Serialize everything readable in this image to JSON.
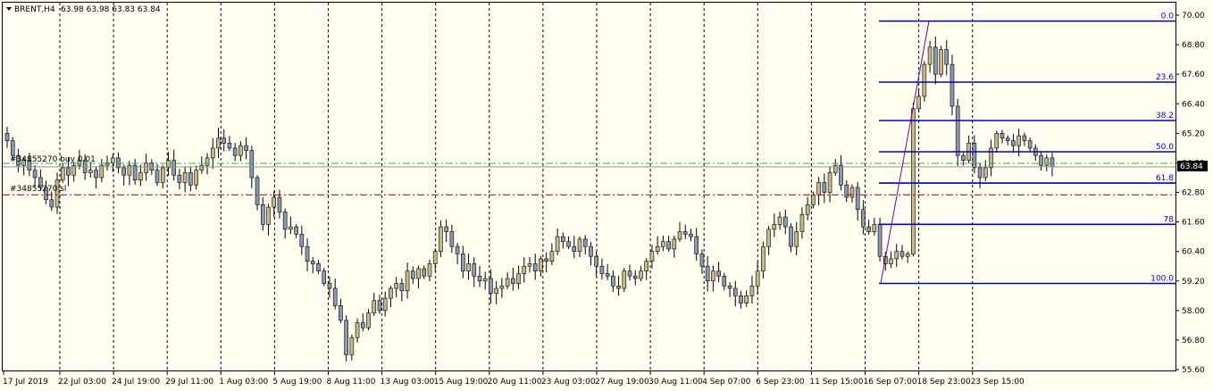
{
  "header": {
    "symbol": "BRENT,H4",
    "ohlc": "63.98 63.98 63.83 63.84"
  },
  "colors": {
    "background": "#fffef0",
    "bull_candle": "#c8b888",
    "bear_candle": "#8a9ab0",
    "fib_line": "#0000cc",
    "fib_trend": "#800080",
    "buy_line": "#4aa64a",
    "sl_line": "#990000",
    "grid": "#000000"
  },
  "orders": {
    "buy_label": "#34855270 buy 0.01",
    "sl_label": "#34855270 sl"
  },
  "current_price": "63.84",
  "fibonacci": {
    "levels": [
      {
        "label": "0.0",
        "price": 69.76
      },
      {
        "label": "23.6",
        "price": 67.28
      },
      {
        "label": "38.2",
        "price": 65.72
      },
      {
        "label": "50.0",
        "price": 64.45
      },
      {
        "label": "61.8",
        "price": 63.18
      },
      {
        "label": "78",
        "price": 61.5
      },
      {
        "label": "100.0",
        "price": 59.1
      }
    ]
  },
  "chart_data": {
    "type": "candlestick",
    "symbol": "BRENT",
    "timeframe": "H4",
    "y_ticks": [
      "70.00",
      "68.80",
      "67.60",
      "66.40",
      "65.20",
      "64.00",
      "62.80",
      "61.60",
      "60.40",
      "59.20",
      "58.00",
      "56.80",
      "55.60"
    ],
    "ylim": [
      55.6,
      70.0
    ],
    "x_ticks": [
      "17 Jul 2019",
      "22 Jul 03:00",
      "24 Jul 19:00",
      "29 Jul 11:00",
      "1 Aug 03:00",
      "5 Aug 19:00",
      "8 Aug 11:00",
      "13 Aug 03:00",
      "15 Aug 19:00",
      "20 Aug 11:00",
      "23 Aug 03:00",
      "27 Aug 19:00",
      "30 Aug 11:00",
      "4 Sep 07:00",
      "6 Sep 23:00",
      "11 Sep 15:00",
      "16 Sep 07:00",
      "18 Sep 23:00",
      "23 Sep 15:00"
    ],
    "buy_price": 63.98,
    "sl_price": 62.7,
    "last_price": 63.84,
    "close_series": [
      64.9,
      64.3,
      63.9,
      64.1,
      63.7,
      63.4,
      63.0,
      62.5,
      62.2,
      63.3,
      63.8,
      63.5,
      63.9,
      64.1,
      63.6,
      63.7,
      63.4,
      63.9,
      64.0,
      64.2,
      63.8,
      63.5,
      63.9,
      63.3,
      63.6,
      64.0,
      63.7,
      63.2,
      63.8,
      64.1,
      63.5,
      63.2,
      63.6,
      63.1,
      63.7,
      63.9,
      64.2,
      64.6,
      65.0,
      64.8,
      64.6,
      64.3,
      64.7,
      64.5,
      63.4,
      62.3,
      61.5,
      62.2,
      62.6,
      62.0,
      61.3,
      61.4,
      61.1,
      60.6,
      60.0,
      59.9,
      59.6,
      59.1,
      58.9,
      58.2,
      57.6,
      56.2,
      56.9,
      57.5,
      57.3,
      57.9,
      58.4,
      58.0,
      58.5,
      58.9,
      59.1,
      58.8,
      59.6,
      59.3,
      59.7,
      59.4,
      59.9,
      60.4,
      61.4,
      61.2,
      60.6,
      60.3,
      59.6,
      59.9,
      59.4,
      59.2,
      59.3,
      58.7,
      58.9,
      59.0,
      59.3,
      59.1,
      59.5,
      59.8,
      59.9,
      59.6,
      60.1,
      60.0,
      60.4,
      61.0,
      60.8,
      60.6,
      60.4,
      60.9,
      60.6,
      60.2,
      59.8,
      59.5,
      59.4,
      59.0,
      58.9,
      59.6,
      59.4,
      59.3,
      59.6,
      60.0,
      60.4,
      60.6,
      60.8,
      60.5,
      60.9,
      61.2,
      61.1,
      61.0,
      60.3,
      59.8,
      59.2,
      59.6,
      59.4,
      59.0,
      58.9,
      58.6,
      58.3,
      58.6,
      59.0,
      59.6,
      60.6,
      61.3,
      61.5,
      61.8,
      61.4,
      60.6,
      61.2,
      61.9,
      62.3,
      62.7,
      63.2,
      62.8,
      63.6,
      63.9,
      63.1,
      62.6,
      63.0,
      62.1,
      61.4,
      61.2,
      61.5,
      60.2,
      59.9,
      60.1,
      60.4,
      60.2,
      60.3,
      66.2,
      66.7,
      68.0,
      68.7,
      67.6,
      68.6,
      68.0,
      66.3,
      64.3,
      64.1,
      64.8,
      63.8,
      63.4,
      63.8,
      64.6,
      65.2,
      65.0,
      64.9,
      64.7,
      65.1,
      64.9,
      64.6,
      64.3,
      63.9,
      64.2,
      63.84
    ]
  }
}
